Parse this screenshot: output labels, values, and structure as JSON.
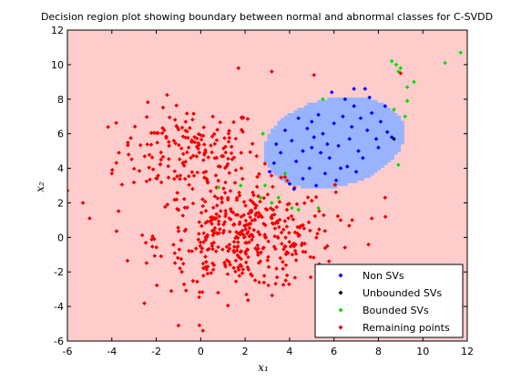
{
  "chart_data": {
    "type": "scatter",
    "title": "Decision region plot showing boundary between normal and abnormal classes for C-SVDD",
    "xlabel": "x₁",
    "ylabel": "x₂",
    "xlim": [
      -6,
      12
    ],
    "ylim": [
      -6,
      12
    ],
    "xticks": [
      -6,
      -4,
      -2,
      0,
      2,
      4,
      6,
      8,
      10,
      12
    ],
    "yticks": [
      -6,
      -4,
      -2,
      0,
      2,
      4,
      6,
      8,
      10,
      12
    ],
    "xtick_labels": [
      "-6",
      "-4",
      "-2",
      "0",
      "2",
      "4",
      "6",
      "8",
      "10",
      "12"
    ],
    "ytick_labels": [
      "-6",
      "-4",
      "-2",
      "0",
      "2",
      "4",
      "6",
      "8",
      "10",
      "12"
    ],
    "grid": false,
    "legend_position": "bottom-right",
    "regions": {
      "abnormal_color": "#ffcccc",
      "normal_color": "#99b3ff",
      "normal_region": {
        "shape": "ellipse",
        "center": [
          6.0,
          5.5
        ],
        "radii": [
          3.3,
          2.5
        ],
        "rotation_deg": 25
      }
    },
    "series": [
      {
        "name": "Non SVs",
        "color": "#0000ff",
        "points": [
          [
            5.0,
            5.2
          ],
          [
            5.5,
            6.0
          ],
          [
            6.2,
            5.3
          ],
          [
            6.8,
            6.4
          ],
          [
            7.1,
            5.0
          ],
          [
            4.3,
            4.4
          ],
          [
            5.8,
            4.6
          ],
          [
            6.4,
            7.0
          ],
          [
            7.5,
            6.2
          ],
          [
            4.8,
            6.3
          ],
          [
            3.6,
            4.9
          ],
          [
            4.1,
            5.6
          ],
          [
            6.9,
            7.6
          ],
          [
            5.3,
            7.1
          ],
          [
            7.7,
            7.2
          ],
          [
            8.1,
            6.7
          ],
          [
            3.1,
            3.8
          ],
          [
            4.6,
            3.4
          ],
          [
            5.6,
            3.7
          ],
          [
            6.6,
            4.1
          ],
          [
            7.3,
            4.6
          ],
          [
            7.9,
            5.7
          ],
          [
            4.0,
            3.1
          ],
          [
            3.3,
            4.3
          ],
          [
            5.1,
            5.8
          ],
          [
            6.0,
            6.6
          ],
          [
            5.9,
            8.4
          ],
          [
            6.9,
            8.6
          ],
          [
            7.6,
            8.1
          ],
          [
            8.3,
            7.6
          ],
          [
            4.4,
            6.9
          ],
          [
            3.8,
            6.2
          ],
          [
            4.9,
            4.0
          ],
          [
            6.1,
            3.3
          ],
          [
            7.0,
            3.8
          ],
          [
            8.0,
            5.2
          ],
          [
            8.4,
            6.1
          ],
          [
            5.4,
            4.9
          ],
          [
            6.7,
            5.7
          ],
          [
            5.7,
            5.4
          ],
          [
            4.6,
            5.0
          ],
          [
            3.4,
            5.4
          ],
          [
            6.3,
            4.0
          ],
          [
            7.2,
            6.9
          ],
          [
            5.0,
            6.7
          ],
          [
            8.6,
            5.8
          ],
          [
            7.4,
            8.6
          ],
          [
            6.5,
            8.0
          ],
          [
            5.2,
            3.0
          ],
          [
            4.2,
            2.8
          ]
        ]
      },
      {
        "name": "Unbounded SVs",
        "color": "#000000",
        "points": [
          [
            8.7,
            5.7
          ]
        ]
      },
      {
        "name": "Bounded SVs",
        "color": "#00dd00",
        "points": [
          [
            8.8,
            10.0
          ],
          [
            9.0,
            9.8
          ],
          [
            8.6,
            10.2
          ],
          [
            9.6,
            9.0
          ],
          [
            9.3,
            8.7
          ],
          [
            11.0,
            10.1
          ],
          [
            11.7,
            10.7
          ],
          [
            8.9,
            9.6
          ],
          [
            9.2,
            7.0
          ],
          [
            8.7,
            7.4
          ],
          [
            9.3,
            7.9
          ],
          [
            8.9,
            4.2
          ],
          [
            2.8,
            6.0
          ],
          [
            3.2,
            2.0
          ],
          [
            3.5,
            2.3
          ],
          [
            2.7,
            2.3
          ],
          [
            4.1,
            1.7
          ],
          [
            2.9,
            3.0
          ],
          [
            3.8,
            3.7
          ],
          [
            4.4,
            1.6
          ],
          [
            5.3,
            1.7
          ],
          [
            5.5,
            8.0
          ],
          [
            1.8,
            3.0
          ],
          [
            0.8,
            2.9
          ]
        ]
      },
      {
        "name": "Remaining points",
        "color": "#ee0000",
        "clusters": [
          {
            "center": [
              -0.5,
              5.0
            ],
            "spread": [
              1.6,
              1.3
            ],
            "count": 180
          },
          {
            "center": [
              2.0,
              0.0
            ],
            "spread": [
              2.0,
              1.5
            ],
            "count": 420
          }
        ],
        "points": [
          [
            -5.3,
            2.0
          ],
          [
            -6.0,
            2.7
          ],
          [
            -5.0,
            1.1
          ],
          [
            -4.0,
            3.7
          ],
          [
            1.7,
            9.8
          ],
          [
            3.2,
            9.6
          ],
          [
            5.1,
            9.4
          ],
          [
            0.1,
            -5.4
          ],
          [
            -1.0,
            -5.1
          ],
          [
            6.3,
            1.0
          ],
          [
            7.7,
            1.1
          ],
          [
            8.3,
            2.3
          ],
          [
            9.0,
            9.5
          ]
        ]
      }
    ]
  }
}
